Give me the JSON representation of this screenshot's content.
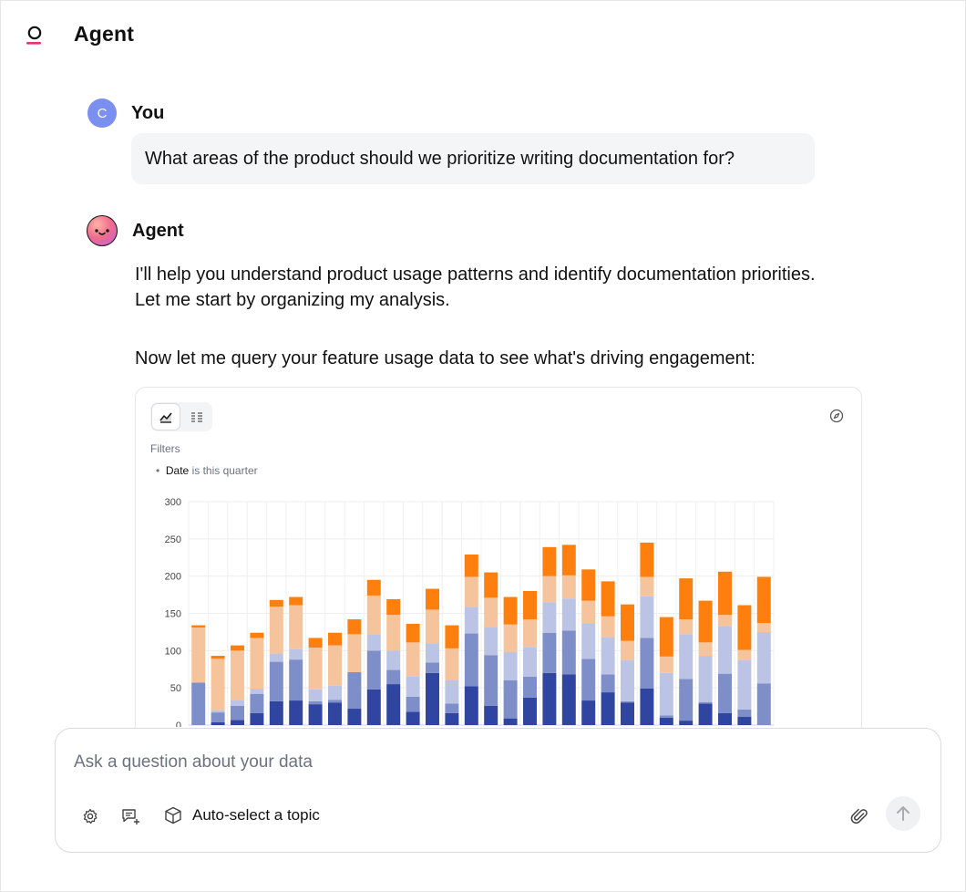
{
  "header": {
    "title": "Agent",
    "logo_icon": "logo-icon"
  },
  "conversation": {
    "user": {
      "avatar_initial": "C",
      "name": "You",
      "message": "What areas of the product should we prioritize writing documentation for?"
    },
    "agent": {
      "name": "Agent",
      "paragraph1": "I'll help you understand product usage patterns and identify documentation priorities. Let me start by organizing my analysis.",
      "paragraph2": "Now let me query your feature usage data to see what's driving engagement:"
    }
  },
  "chart_card": {
    "filters_label": "Filters",
    "filter": {
      "field": "Date",
      "condition": "is this quarter"
    }
  },
  "chart_data": {
    "type": "bar",
    "stacked": true,
    "ylim": [
      0,
      300
    ],
    "yticks": [
      "0",
      "50",
      "100",
      "150",
      "200",
      "250",
      "300"
    ],
    "grid": true,
    "legend": "none",
    "colors": [
      "#2f45a0",
      "#7e8ec9",
      "#bcc4e6",
      "#f5c39c",
      "#ff7f0e"
    ],
    "series": [
      {
        "values": [
          0,
          4,
          7,
          16,
          32,
          33,
          28,
          30,
          22,
          48,
          55,
          18,
          70,
          16,
          52,
          26,
          9,
          37,
          70,
          68,
          33,
          44,
          30,
          49,
          10,
          6,
          29,
          16,
          11,
          0
        ]
      },
      {
        "values": [
          57,
          13,
          19,
          26,
          53,
          55,
          4,
          4,
          49,
          52,
          19,
          20,
          14,
          13,
          71,
          68,
          51,
          28,
          54,
          59,
          56,
          24,
          2,
          68,
          3,
          56,
          2,
          53,
          10,
          56
        ]
      },
      {
        "values": [
          0,
          3,
          8,
          7,
          11,
          14,
          16,
          19,
          0,
          22,
          26,
          27,
          26,
          31,
          35,
          38,
          38,
          40,
          41,
          43,
          48,
          50,
          55,
          56,
          57,
          60,
          62,
          64,
          66,
          69
        ]
      },
      {
        "values": [
          74,
          69,
          66,
          68,
          63,
          59,
          56,
          54,
          51,
          52,
          48,
          46,
          45,
          43,
          41,
          39,
          37,
          37,
          35,
          31,
          30,
          28,
          26,
          26,
          22,
          20,
          18,
          15,
          14,
          12
        ]
      },
      {
        "values": [
          3,
          4,
          7,
          7,
          9,
          11,
          13,
          17,
          20,
          21,
          21,
          25,
          28,
          31,
          30,
          34,
          37,
          38,
          39,
          41,
          42,
          47,
          49,
          46,
          53,
          55,
          56,
          58,
          60,
          62
        ]
      }
    ]
  },
  "composer": {
    "placeholder": "Ask a question about your data",
    "topic_label": "Auto-select a topic"
  }
}
